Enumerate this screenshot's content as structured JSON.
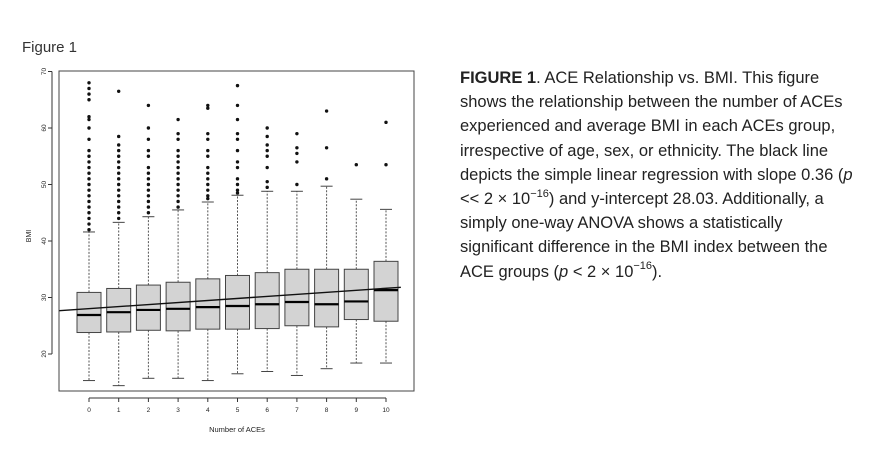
{
  "figure_label": "Figure 1",
  "caption": {
    "lead": "FIGURE 1",
    "s1": ". ACE Relationship vs. BMI. This figure shows the relationship between the number of ACEs experienced and average BMI in each ACEs group, irrespective of age, sex, or ethnicity. The black line depicts the simple linear regression with slope 0.36 (",
    "p1": "p",
    "s2": " << 2 × 10",
    "exp1": "−16",
    "s3": ") and y-intercept 28.03. Additionally, a simply one-way ANOVA shows a statistically significant difference in the BMI index between the ACE groups (",
    "p2": "p",
    "s4": " < 2 × 10",
    "exp2": "−16",
    "s5": ")."
  },
  "chart_data": {
    "type": "boxplot",
    "xlabel": "Number of ACEs",
    "ylabel": "BMI",
    "ylim": [
      13,
      71
    ],
    "yticks": [
      20,
      30,
      40,
      50,
      60,
      70
    ],
    "grid": false,
    "box_color": "#d3d3d3",
    "categories": [
      "0",
      "1",
      "2",
      "3",
      "4",
      "5",
      "6",
      "7",
      "8",
      "9",
      "10"
    ],
    "boxes": [
      {
        "x": 0,
        "whisker_low": 15.3,
        "q1": 23.8,
        "median": 26.9,
        "q3": 30.9,
        "whisker_high": 41.6
      },
      {
        "x": 1,
        "whisker_low": 14.4,
        "q1": 23.9,
        "median": 27.4,
        "q3": 31.6,
        "whisker_high": 43.3
      },
      {
        "x": 2,
        "whisker_low": 15.7,
        "q1": 24.2,
        "median": 27.8,
        "q3": 32.2,
        "whisker_high": 44.3
      },
      {
        "x": 3,
        "whisker_low": 15.7,
        "q1": 24.1,
        "median": 28.0,
        "q3": 32.7,
        "whisker_high": 45.5
      },
      {
        "x": 4,
        "whisker_low": 15.3,
        "q1": 24.4,
        "median": 28.3,
        "q3": 33.3,
        "whisker_high": 46.9
      },
      {
        "x": 5,
        "whisker_low": 16.5,
        "q1": 24.4,
        "median": 28.5,
        "q3": 33.9,
        "whisker_high": 48.1
      },
      {
        "x": 6,
        "whisker_low": 16.9,
        "q1": 24.5,
        "median": 28.8,
        "q3": 34.4,
        "whisker_high": 48.8
      },
      {
        "x": 7,
        "whisker_low": 16.2,
        "q1": 25.0,
        "median": 29.2,
        "q3": 35.0,
        "whisker_high": 48.8
      },
      {
        "x": 8,
        "whisker_low": 17.4,
        "q1": 24.8,
        "median": 28.8,
        "q3": 35.0,
        "whisker_high": 49.7
      },
      {
        "x": 9,
        "whisker_low": 18.4,
        "q1": 26.1,
        "median": 29.3,
        "q3": 35.0,
        "whisker_high": 47.4
      },
      {
        "x": 10,
        "whisker_low": 18.4,
        "q1": 25.8,
        "median": 31.3,
        "q3": 36.4,
        "whisker_high": 45.6
      }
    ],
    "outliers": [
      {
        "x": 0,
        "values": [
          42,
          43,
          44,
          45,
          46,
          47,
          48,
          49,
          50,
          51,
          52,
          53,
          54,
          55,
          56,
          58,
          60,
          61.5,
          62,
          65,
          66,
          67,
          68
        ]
      },
      {
        "x": 1,
        "values": [
          44,
          45,
          46,
          47,
          48,
          49,
          50,
          51,
          52,
          53,
          54,
          55,
          56,
          57,
          58.5,
          66.5
        ]
      },
      {
        "x": 2,
        "values": [
          45,
          46,
          47,
          48,
          49,
          50,
          51,
          52,
          53,
          55,
          56,
          58,
          60,
          64
        ]
      },
      {
        "x": 3,
        "values": [
          46,
          47,
          48,
          49,
          50,
          51,
          52,
          53,
          54,
          55,
          56,
          58,
          59,
          61.5
        ]
      },
      {
        "x": 4,
        "values": [
          47.5,
          48,
          49,
          50,
          51,
          52,
          53,
          55,
          56,
          58,
          59,
          63.5,
          64
        ]
      },
      {
        "x": 5,
        "values": [
          48.5,
          49,
          50,
          51,
          53,
          54,
          56,
          58,
          59,
          61.5,
          64,
          67.5
        ]
      },
      {
        "x": 6,
        "values": [
          49.5,
          50.5,
          53,
          55,
          56,
          57,
          58.5,
          60
        ]
      },
      {
        "x": 7,
        "values": [
          50,
          54,
          55.5,
          56.5,
          59
        ]
      },
      {
        "x": 8,
        "values": [
          51,
          56.5,
          63
        ]
      },
      {
        "x": 9,
        "values": [
          53.5
        ]
      },
      {
        "x": 10,
        "values": [
          53.5,
          61
        ]
      }
    ],
    "regression": {
      "slope": 0.36,
      "intercept": 28.03,
      "x_range": [
        -1,
        10.5
      ]
    }
  }
}
